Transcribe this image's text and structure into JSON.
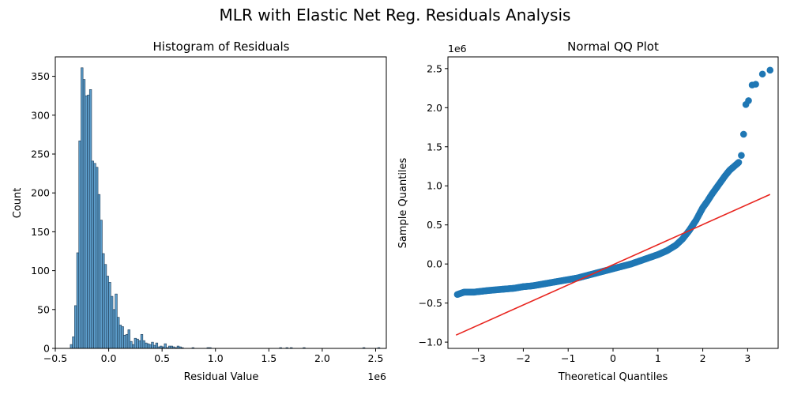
{
  "figure": {
    "title": "MLR with Elastic Net Reg. Residuals Analysis"
  },
  "chart_data": [
    {
      "type": "bar",
      "subtype": "histogram",
      "title": "Histogram of Residuals",
      "xlabel": "Residual Value",
      "ylabel": "Count",
      "x_multiplier_label": "1e6",
      "xlim": [
        -0.5,
        2.6
      ],
      "ylim": [
        0,
        375
      ],
      "x_ticks": [
        -0.5,
        0.0,
        0.5,
        1.0,
        1.5,
        2.0,
        2.5
      ],
      "x_tick_labels": [
        "−0.5",
        "0.0",
        "0.5",
        "1.0",
        "1.5",
        "2.0",
        "2.5"
      ],
      "y_ticks": [
        0,
        50,
        100,
        150,
        200,
        250,
        300,
        350
      ],
      "y_tick_labels": [
        "0",
        "50",
        "100",
        "150",
        "200",
        "250",
        "300",
        "350"
      ],
      "bin_start": -0.36,
      "bin_width": 0.02,
      "counts": [
        5,
        15,
        55,
        123,
        267,
        361,
        346,
        325,
        326,
        333,
        241,
        238,
        233,
        198,
        165,
        122,
        108,
        93,
        85,
        67,
        50,
        70,
        40,
        30,
        28,
        17,
        18,
        24,
        9,
        5,
        13,
        12,
        10,
        18,
        10,
        7,
        6,
        5,
        8,
        4,
        7,
        2,
        3,
        2,
        6,
        1,
        3,
        3,
        2,
        1,
        3,
        2,
        1,
        0,
        0,
        0,
        0,
        1,
        0,
        0,
        0,
        0,
        0,
        0,
        1,
        1,
        0,
        0,
        0,
        0,
        0,
        0,
        0,
        0,
        0,
        0,
        0,
        0,
        0,
        0,
        0,
        0,
        0,
        0,
        0,
        0,
        0,
        0,
        0,
        0,
        0,
        0,
        0,
        0,
        0,
        0,
        0,
        0,
        1,
        0,
        0,
        1,
        0,
        1,
        0,
        0,
        0,
        0,
        0,
        1,
        0,
        0,
        0,
        0,
        0,
        0,
        0,
        0,
        0,
        0,
        0,
        0,
        0,
        0,
        0,
        0,
        0,
        0,
        0,
        0,
        0,
        0,
        0,
        0,
        0,
        0,
        0,
        1,
        0,
        0,
        0,
        0,
        0,
        0,
        1
      ],
      "bar_color": "#5b9bc8",
      "edge_color": "#1f3b55"
    },
    {
      "type": "scatter",
      "subtype": "qq",
      "title": "Normal QQ Plot",
      "xlabel": "Theoretical Quantiles",
      "ylabel": "Sample Quantiles",
      "y_multiplier_label": "1e6",
      "xlim": [
        -3.68,
        3.68
      ],
      "ylim": [
        -1.08,
        2.65
      ],
      "x_ticks": [
        -3,
        -2,
        -1,
        0,
        1,
        2,
        3
      ],
      "x_tick_labels": [
        "−3",
        "−2",
        "−1",
        "0",
        "1",
        "2",
        "3"
      ],
      "y_ticks": [
        -1.0,
        -0.5,
        0.0,
        0.5,
        1.0,
        1.5,
        2.0,
        2.5
      ],
      "y_tick_labels": [
        "−1.0",
        "−0.5",
        "0.0",
        "0.5",
        "1.0",
        "1.5",
        "2.0",
        "2.5"
      ],
      "points_x": [
        -3.47,
        -3.32,
        -3.22,
        -3.1,
        -2.95,
        -2.8,
        -2.6,
        -2.4,
        -2.2,
        -2.0,
        -1.8,
        -1.6,
        -1.4,
        -1.2,
        -1.0,
        -0.8,
        -0.6,
        -0.4,
        -0.2,
        0.0,
        0.2,
        0.4,
        0.6,
        0.8,
        1.0,
        1.2,
        1.4,
        1.55,
        1.7,
        1.85,
        2.0,
        2.1,
        2.2,
        2.3,
        2.4,
        2.5,
        2.6,
        2.7,
        2.8,
        2.86,
        2.91,
        2.96,
        3.02,
        3.1,
        3.18,
        3.33,
        3.5
      ],
      "points_y": [
        -0.39,
        -0.36,
        -0.36,
        -0.36,
        -0.35,
        -0.34,
        -0.33,
        -0.32,
        -0.31,
        -0.29,
        -0.28,
        -0.26,
        -0.24,
        -0.22,
        -0.2,
        -0.18,
        -0.15,
        -0.12,
        -0.09,
        -0.06,
        -0.03,
        0.0,
        0.04,
        0.08,
        0.12,
        0.17,
        0.24,
        0.32,
        0.43,
        0.56,
        0.72,
        0.8,
        0.89,
        0.97,
        1.05,
        1.13,
        1.2,
        1.25,
        1.3,
        1.39,
        1.66,
        2.04,
        2.09,
        2.29,
        2.3,
        2.43,
        2.48
      ],
      "point_color": "#1f77b4",
      "reference_line": {
        "x": [
          -3.5,
          3.5
        ],
        "y": [
          -0.91,
          0.89
        ],
        "color": "#e8251f"
      }
    }
  ]
}
